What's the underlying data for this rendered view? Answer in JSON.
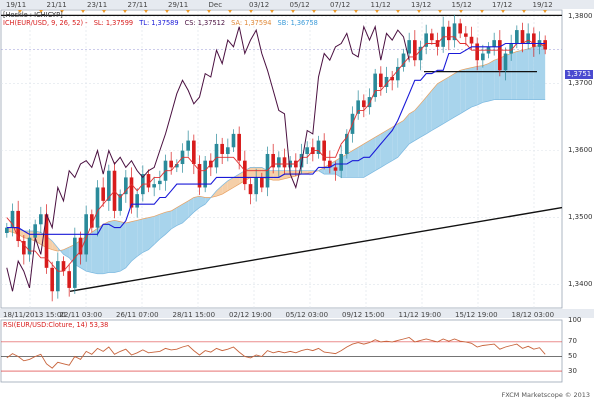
{
  "window": {
    "top_dates": [
      "19/11",
      "21/11",
      "23/11",
      "27/11",
      "29/11",
      "Dec",
      "03/12",
      "05/12",
      "07/12",
      "11/12",
      "13/12",
      "15/12",
      "17/12",
      "19/12"
    ],
    "bottom_dates": [
      "18/11/2013 15:00",
      "22/11 03:00",
      "26/11 07:00",
      "28/11 15:00",
      "02/12 19:00",
      "05/12 03:00",
      "09/12 15:00",
      "11/12 19:00",
      "15/12 19:00",
      "18/12 03:00"
    ],
    "main_legend": {
      "title": "[Hoskle : ICHICYP]",
      "ichi": "ICH(EUR/USD, 9, 26, 52) -",
      "sl": "SL: 1,37599",
      "tl": "TL: 1,37589",
      "cs": "CS: 1,37512",
      "sa": "SA: 1,37594",
      "sb": "SB: 1,36758"
    },
    "rsi_legend": "RSI(EUR/USD:Cloture, 14) 53,38",
    "footer": "FXCM Marketscope © 2013",
    "current_price": "1,3751",
    "colors": {
      "bull": "#2a8a9a",
      "bear": "#d81c1c",
      "tenkan": "#e03030",
      "kijun": "#1a1ad8",
      "chikou": "#4a1040",
      "kumo_bull": "#a8d4ec",
      "kumo_bear": "#f5cfa8",
      "rsi": "#c8643c"
    }
  },
  "chart_data": [
    {
      "type": "line",
      "title": "[Hoskle : ICHICYP]",
      "ylim": [
        1.3365,
        1.381
      ],
      "y_ticks": [
        "1,3800",
        "1,3700",
        "1,3600",
        "1,3500",
        "1,3400"
      ],
      "ticks_values": [
        1.38,
        1.37,
        1.36,
        1.35,
        1.34
      ],
      "close": [
        1.3485,
        1.351,
        1.3465,
        1.3445,
        1.347,
        1.349,
        1.3505,
        1.3425,
        1.339,
        1.3435,
        1.342,
        1.3395,
        1.347,
        1.3445,
        1.3505,
        1.3485,
        1.3545,
        1.3525,
        1.357,
        1.351,
        1.3535,
        1.356,
        1.3515,
        1.3535,
        1.3565,
        1.3545,
        1.355,
        1.3555,
        1.3585,
        1.3575,
        1.358,
        1.36,
        1.3615,
        1.358,
        1.3545,
        1.3585,
        1.3575,
        1.361,
        1.3595,
        1.3605,
        1.3625,
        1.3585,
        1.355,
        1.3535,
        1.356,
        1.3545,
        1.3595,
        1.3575,
        1.359,
        1.3575,
        1.3585,
        1.3575,
        1.3595,
        1.3605,
        1.3595,
        1.3615,
        1.3585,
        1.3575,
        1.357,
        1.3595,
        1.3625,
        1.3655,
        1.3675,
        1.3665,
        1.368,
        1.3715,
        1.3695,
        1.371,
        1.3705,
        1.3725,
        1.3745,
        1.3765,
        1.3735,
        1.3755,
        1.3775,
        1.3765,
        1.3755,
        1.3785,
        1.3765,
        1.379,
        1.3775,
        1.377,
        1.376,
        1.3735,
        1.3745,
        1.3755,
        1.3765,
        1.372,
        1.3745,
        1.376,
        1.378,
        1.376,
        1.3775,
        1.3755,
        1.3765,
        1.3751
      ],
      "tenkan": [
        1.35,
        1.349,
        1.347,
        1.346,
        1.345,
        1.345,
        1.344,
        1.344,
        1.343,
        1.342,
        1.342,
        1.343,
        1.344,
        1.345,
        1.347,
        1.349,
        1.351,
        1.352,
        1.353,
        1.354,
        1.353,
        1.354,
        1.355,
        1.354,
        1.355,
        1.355,
        1.356,
        1.356,
        1.357,
        1.357,
        1.358,
        1.359,
        1.359,
        1.358,
        1.357,
        1.357,
        1.358,
        1.359,
        1.359,
        1.359,
        1.359,
        1.358,
        1.357,
        1.357,
        1.357,
        1.357,
        1.357,
        1.358,
        1.358,
        1.358,
        1.358,
        1.358,
        1.359,
        1.359,
        1.36,
        1.36,
        1.359,
        1.359,
        1.359,
        1.361,
        1.362,
        1.364,
        1.366,
        1.366,
        1.367,
        1.369,
        1.369,
        1.37,
        1.371,
        1.372,
        1.373,
        1.374,
        1.374,
        1.375,
        1.376,
        1.376,
        1.376,
        1.377,
        1.377,
        1.377,
        1.376,
        1.376,
        1.375,
        1.375,
        1.375,
        1.375,
        1.375,
        1.375,
        1.375,
        1.375,
        1.376,
        1.376,
        1.3765,
        1.376,
        1.376,
        1.3755
      ],
      "kijun": [
        1.3485,
        1.3485,
        1.3485,
        1.348,
        1.3475,
        1.3475,
        1.3475,
        1.3475,
        1.3475,
        1.3475,
        1.3475,
        1.3475,
        1.3475,
        1.3475,
        1.3475,
        1.3475,
        1.3475,
        1.349,
        1.349,
        1.3485,
        1.3485,
        1.3495,
        1.352,
        1.352,
        1.352,
        1.352,
        1.352,
        1.353,
        1.353,
        1.354,
        1.355,
        1.355,
        1.355,
        1.355,
        1.355,
        1.355,
        1.355,
        1.356,
        1.356,
        1.356,
        1.356,
        1.356,
        1.356,
        1.356,
        1.356,
        1.356,
        1.356,
        1.356,
        1.356,
        1.3565,
        1.3565,
        1.3565,
        1.3565,
        1.3565,
        1.3565,
        1.3575,
        1.3575,
        1.3575,
        1.358,
        1.358,
        1.358,
        1.3585,
        1.3585,
        1.359,
        1.359,
        1.36,
        1.361,
        1.362,
        1.363,
        1.3645,
        1.3665,
        1.3685,
        1.3705,
        1.3705,
        1.3715,
        1.3715,
        1.372,
        1.372,
        1.3745,
        1.3745,
        1.3745,
        1.375,
        1.3755,
        1.3755,
        1.3755,
        1.3755,
        1.3755,
        1.3755,
        1.376,
        1.376,
        1.376,
        1.376,
        1.376,
        1.376,
        1.376,
        1.376
      ],
      "chikou": [
        1.3425,
        1.339,
        1.3435,
        1.342,
        1.3395,
        1.347,
        1.3445,
        1.3505,
        1.3485,
        1.3545,
        1.3525,
        1.357,
        1.356,
        1.358,
        1.3585,
        1.3575,
        1.36,
        1.3565,
        1.36,
        1.358,
        1.359,
        1.3575,
        1.3585,
        1.357,
        1.356,
        1.357,
        1.3575,
        1.36,
        1.3625,
        1.3655,
        1.3685,
        1.3705,
        1.369,
        1.367,
        1.368,
        1.3715,
        1.371,
        1.375,
        1.373,
        1.3765,
        1.3755,
        1.3785,
        1.3745,
        1.3765,
        1.378,
        1.3745,
        1.372,
        1.369,
        1.366,
        1.3655,
        1.3565,
        1.3545,
        1.358,
        1.363,
        1.3625,
        1.371,
        1.3745,
        1.3735,
        1.3755,
        1.376,
        1.3775,
        1.3745,
        1.374,
        1.3785,
        1.3765,
        1.3785,
        1.3735,
        1.3775,
        1.3765,
        1.378,
        1.377,
        1.3735
      ],
      "chikou_offset": 0,
      "senkou_a": [
        1.348,
        1.3478,
        1.3475,
        1.347,
        1.3468,
        1.3465,
        1.346,
        1.3455,
        1.3452,
        1.345,
        1.3452,
        1.3456,
        1.346,
        1.3466,
        1.3472,
        1.3478,
        1.3484,
        1.349,
        1.3494,
        1.3496,
        1.3494,
        1.3492,
        1.3494,
        1.3496,
        1.3498,
        1.35,
        1.3502,
        1.3505,
        1.3508,
        1.351,
        1.3515,
        1.352,
        1.3525,
        1.353,
        1.3532,
        1.353,
        1.353,
        1.3532,
        1.3535,
        1.354,
        1.3545,
        1.355,
        1.3555,
        1.356,
        1.356,
        1.356,
        1.3558,
        1.3556,
        1.3556,
        1.3558,
        1.356,
        1.3562,
        1.3565,
        1.3566,
        1.3568,
        1.357,
        1.3575,
        1.358,
        1.3585,
        1.359,
        1.3595,
        1.36,
        1.3605,
        1.361,
        1.3615,
        1.362,
        1.3625,
        1.363,
        1.3635,
        1.364,
        1.3645,
        1.3655,
        1.366,
        1.367,
        1.368,
        1.369,
        1.37,
        1.3705,
        1.371,
        1.3715,
        1.372,
        1.3722,
        1.3724,
        1.3726,
        1.3727,
        1.373,
        1.3735,
        1.3738,
        1.3742,
        1.3745,
        1.3748,
        1.375,
        1.3752,
        1.3755,
        1.3758,
        1.3759
      ],
      "senkou_b": [
        1.3485,
        1.3485,
        1.3483,
        1.348,
        1.348,
        1.348,
        1.3478,
        1.3472,
        1.3465,
        1.3455,
        1.3445,
        1.344,
        1.343,
        1.3425,
        1.342,
        1.3418,
        1.3416,
        1.3416,
        1.3418,
        1.3418,
        1.342,
        1.3425,
        1.3435,
        1.3442,
        1.3448,
        1.3452,
        1.346,
        1.3468,
        1.3475,
        1.3483,
        1.3488,
        1.3492,
        1.35,
        1.3508,
        1.3515,
        1.352,
        1.353,
        1.354,
        1.3548,
        1.3555,
        1.356,
        1.3565,
        1.357,
        1.3575,
        1.3575,
        1.3575,
        1.357,
        1.357,
        1.357,
        1.357,
        1.357,
        1.357,
        1.357,
        1.357,
        1.357,
        1.357,
        1.3565,
        1.3565,
        1.3565,
        1.356,
        1.356,
        1.356,
        1.356,
        1.356,
        1.3565,
        1.357,
        1.3575,
        1.358,
        1.3585,
        1.359,
        1.36,
        1.361,
        1.3615,
        1.362,
        1.3625,
        1.363,
        1.3635,
        1.364,
        1.3645,
        1.365,
        1.3655,
        1.366,
        1.3665,
        1.3668,
        1.3672,
        1.3674,
        1.3676,
        1.3676,
        1.3676,
        1.3676,
        1.3676,
        1.3676,
        1.3676,
        1.3676,
        1.3676,
        1.3676
      ]
    },
    {
      "type": "line",
      "title": "RSI(EUR/USD:Cloture, 14) 53,38",
      "ylim": [
        15,
        100
      ],
      "levels": [
        70,
        50,
        30
      ],
      "y_ticks": [
        "100",
        "70",
        "50",
        "30"
      ],
      "ticks_values": [
        100,
        70,
        50,
        30
      ],
      "values": [
        48,
        54,
        50,
        44,
        46,
        50,
        53,
        40,
        34,
        42,
        40,
        38,
        50,
        46,
        57,
        53,
        61,
        57,
        63,
        53,
        57,
        60,
        52,
        55,
        59,
        55,
        56,
        57,
        61,
        59,
        60,
        63,
        65,
        58,
        52,
        58,
        56,
        61,
        58,
        60,
        63,
        56,
        50,
        48,
        52,
        50,
        58,
        55,
        57,
        55,
        57,
        55,
        58,
        60,
        58,
        61,
        56,
        55,
        54,
        58,
        63,
        67,
        69,
        67,
        69,
        73,
        70,
        71,
        70,
        72,
        74,
        76,
        70,
        72,
        74,
        72,
        70,
        74,
        71,
        74,
        71,
        70,
        68,
        63,
        65,
        66,
        67,
        60,
        63,
        65,
        67,
        61,
        64,
        60,
        62,
        53
      ]
    }
  ]
}
